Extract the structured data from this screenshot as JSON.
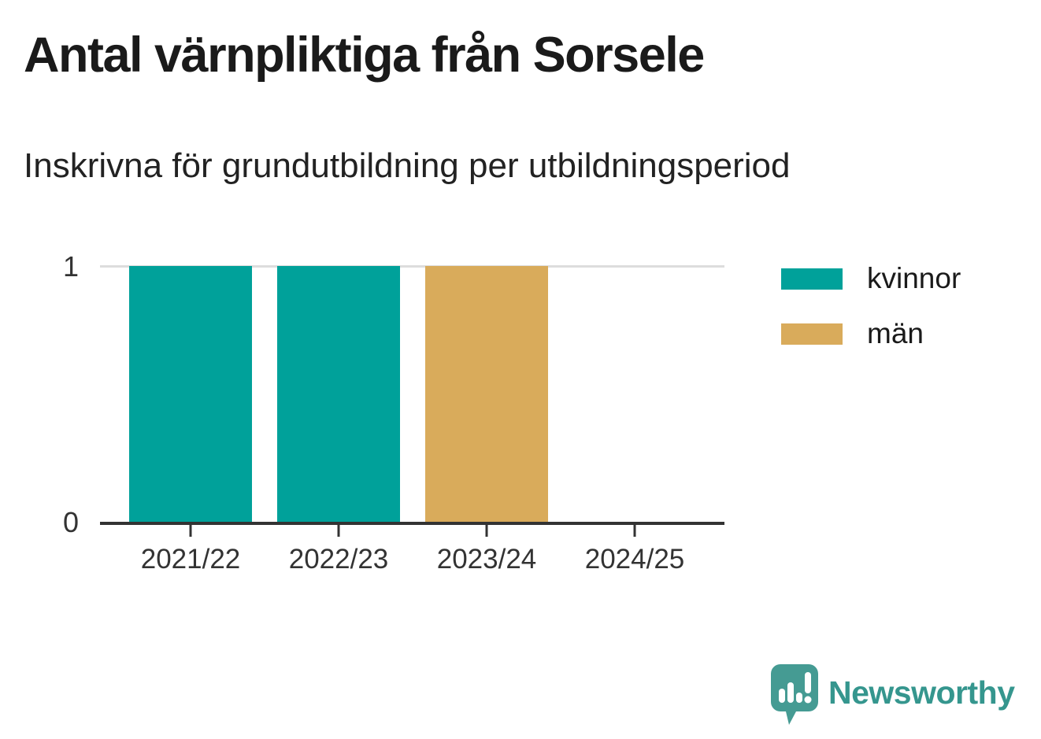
{
  "header": {
    "title": "Antal värnpliktiga från Sorsele",
    "subtitle": "Inskrivna för grundutbildning per utbildningsperiod"
  },
  "chart_data": {
    "type": "bar",
    "stacked": true,
    "categories": [
      "2021/22",
      "2022/23",
      "2023/24",
      "2024/25"
    ],
    "series": [
      {
        "name": "kvinnor",
        "color": "#00A19A",
        "values": [
          1,
          1,
          0,
          0
        ]
      },
      {
        "name": "män",
        "color": "#D9AB5B",
        "values": [
          0,
          0,
          1,
          0
        ]
      }
    ],
    "title": "Antal värnpliktiga från Sorsele",
    "subtitle": "Inskrivna för grundutbildning per utbildningsperiod",
    "xlabel": "",
    "ylabel": "",
    "ylim": [
      0,
      1
    ],
    "yticks": [
      0,
      1
    ],
    "grid": "y",
    "gridline_color": "#dddddd",
    "axis_color": "#333333",
    "legend_position": "right"
  },
  "branding": {
    "logo_text": "Newsworthy",
    "logo_color": "#35968e",
    "logo_icon": "newsworthy-speech-bubble-chart-icon"
  }
}
